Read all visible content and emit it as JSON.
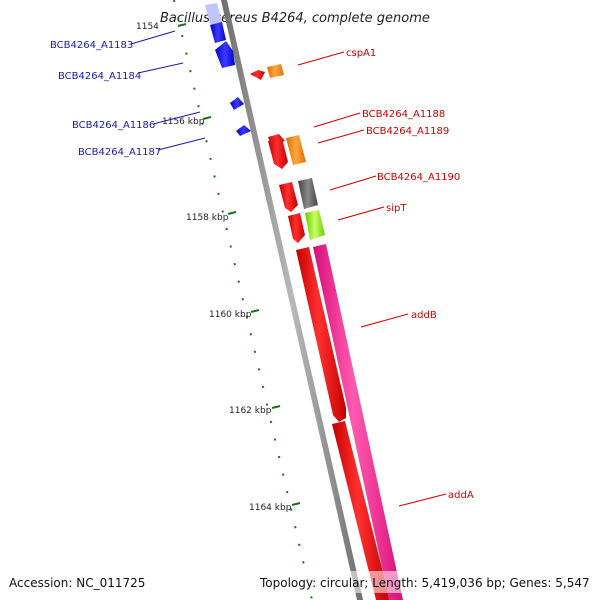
{
  "title": "Bacillus cereus B4264, complete genome",
  "ticks": [
    "1154",
    "1156 kbp",
    "1158 kbp",
    "1160 kbp",
    "1162 kbp",
    "1164 kbp"
  ],
  "genes_left": [
    {
      "label": "BCB4264_A1183",
      "color": "#0000ff"
    },
    {
      "label": "BCB4264_A1184",
      "color": "#0000ff"
    },
    {
      "label": "BCB4264_A1186",
      "color": "#0000ff"
    },
    {
      "label": "BCB4264_A1187",
      "color": "#0000ff"
    }
  ],
  "genes_right": [
    {
      "label": "cspA1",
      "color": "#ff8c00"
    },
    {
      "label": "BCB4264_A1188",
      "color": "#ff0000"
    },
    {
      "label": "BCB4264_A1189",
      "color": "#ff8c00"
    },
    {
      "label": "BCB4264_A1190",
      "color": "#666666"
    },
    {
      "label": "sipT",
      "color": "#99ff33"
    },
    {
      "label": "addB",
      "color": "#ff1493"
    },
    {
      "label": "addA",
      "color": "#ff0000"
    }
  ],
  "footer": {
    "accession": "Accession: NC_011725",
    "summary": "Topology: circular; Length: 5,419,036 bp; Genes: 5,547"
  },
  "colors": {
    "backbone": "#888888",
    "forward_strand": "#ff0000",
    "forward_strand_2": "#ff1493",
    "reverse_strand": "#0000ff",
    "tick": "#117711"
  }
}
